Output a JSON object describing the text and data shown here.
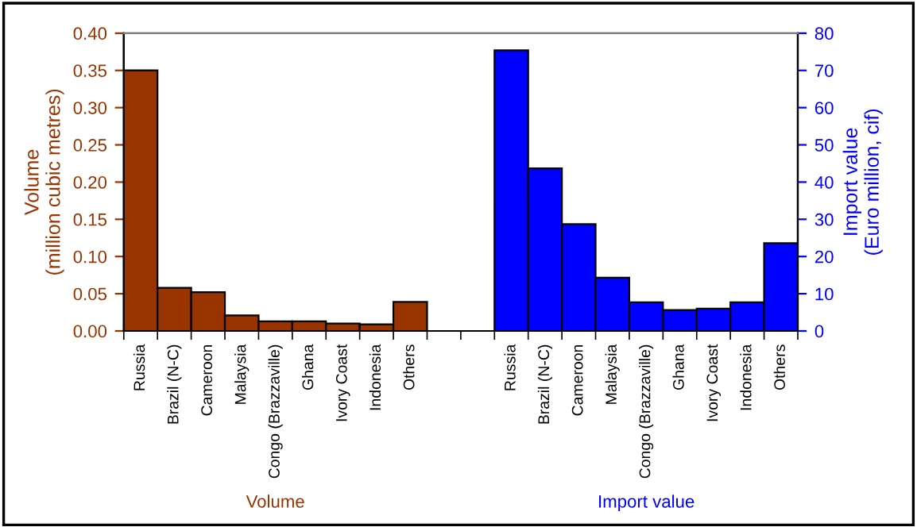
{
  "chart_data": {
    "type": "bar",
    "categories": [
      "Russia",
      "Brazil (N-C)",
      "Cameroon",
      "Malaysia",
      "Congo (Brazzaville)",
      "Ghana",
      "Ivory Coast",
      "Indonesia",
      "Others",
      null,
      null,
      "Russia",
      "Brazil (N-C)",
      "Cameroon",
      "Malaysia",
      "Congo (Brazzaville)",
      "Ghana",
      "Ivory Coast",
      "Indonesia",
      "Others"
    ],
    "series": [
      {
        "color": "#993300",
        "values": [
          0.35,
          0.058,
          0.052,
          0.021,
          0.013,
          0.013,
          0.01,
          0.009,
          0.039,
          null,
          null,
          null,
          null,
          null,
          null,
          null,
          null,
          null,
          null,
          null
        ]
      },
      {
        "color": "#0000ff",
        "axis": "y2",
        "values": [
          null,
          null,
          null,
          null,
          null,
          null,
          null,
          null,
          null,
          null,
          null,
          75.4,
          43.7,
          28.7,
          14.3,
          7.7,
          5.6,
          6.0,
          7.7,
          23.6
        ]
      }
    ],
    "ylabel": "Volume\n(million cubic metres)",
    "y2label": "Import value\n(Euro million, cif)",
    "ylim": [
      0,
      0.4
    ],
    "yticks": [
      {
        "value": 0,
        "label": "0.00"
      },
      {
        "value": 0.05,
        "label": "0.05"
      },
      {
        "value": 0.1,
        "label": "0.10"
      },
      {
        "value": 0.15,
        "label": "0.15"
      },
      {
        "value": 0.2,
        "label": "0.20"
      },
      {
        "value": 0.25,
        "label": "0.25"
      },
      {
        "value": 0.3,
        "label": "0.30"
      },
      {
        "value": 0.35,
        "label": "0.35"
      },
      {
        "value": 0.4,
        "label": "0.40"
      }
    ],
    "y2lim": [
      0,
      80
    ],
    "y2ticks": [
      0,
      10,
      20,
      30,
      40,
      50,
      60,
      70,
      80
    ],
    "annotations": [
      "Volume",
      "Import value"
    ],
    "grid": false,
    "legend": false
  }
}
